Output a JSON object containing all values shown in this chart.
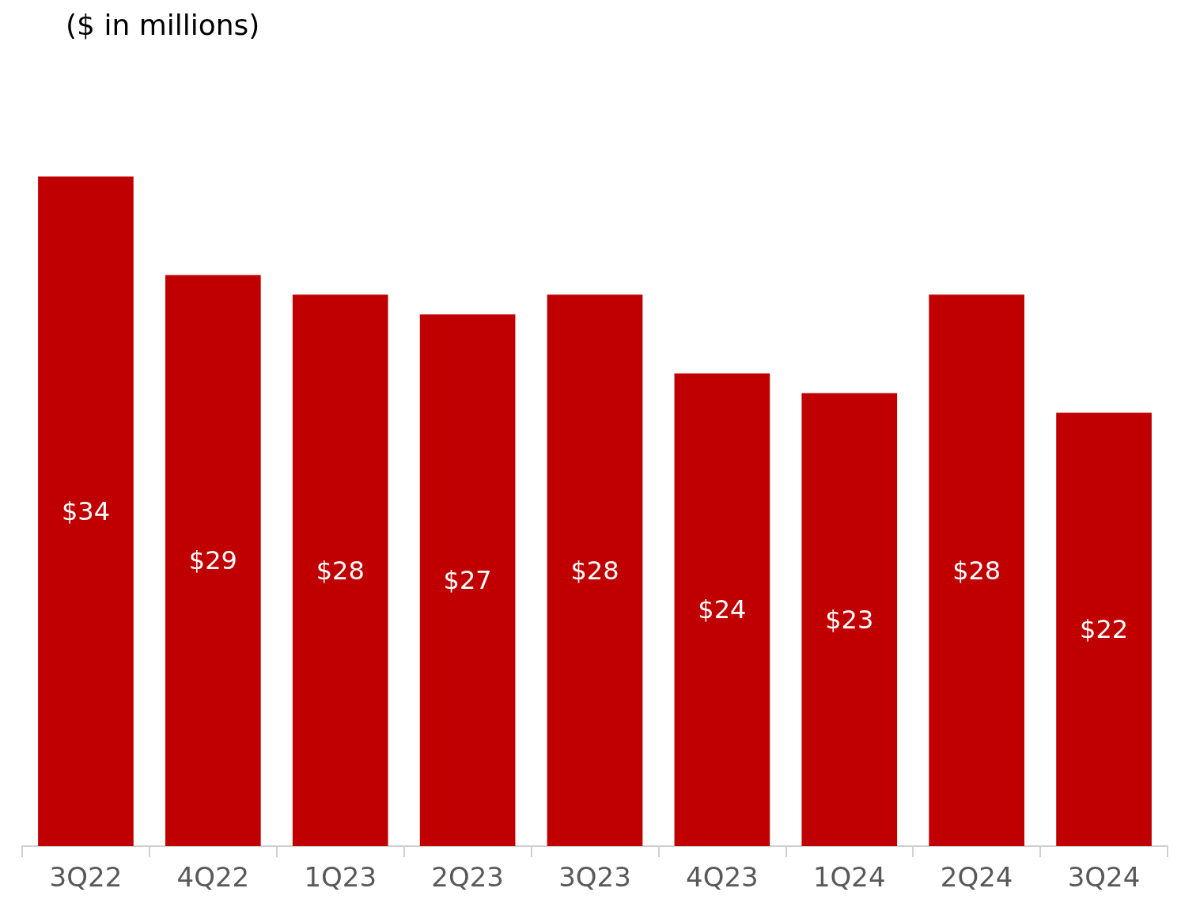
{
  "chart_data": {
    "type": "bar",
    "title": "($ in millions)",
    "categories": [
      "3Q22",
      "4Q22",
      "1Q23",
      "2Q23",
      "3Q23",
      "4Q23",
      "1Q24",
      "2Q24",
      "3Q24"
    ],
    "values": [
      34,
      29,
      28,
      27,
      28,
      24,
      23,
      28,
      22
    ],
    "value_labels": [
      "$34",
      "$29",
      "$28",
      "$27",
      "$28",
      "$24",
      "$23",
      "$28",
      "$22"
    ],
    "color": "#c00000"
  }
}
